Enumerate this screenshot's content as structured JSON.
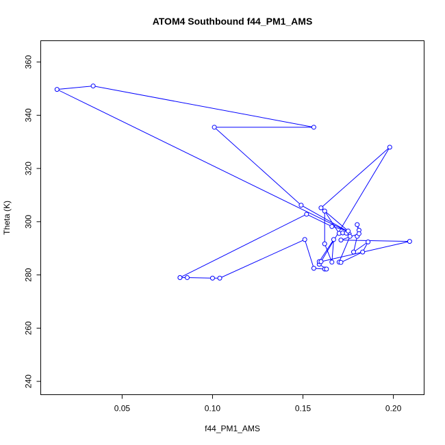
{
  "chart_data": {
    "type": "line",
    "title": "ATOM4 Southbound f44_PM1_AMS",
    "xlabel": "f44_PM1_AMS",
    "ylabel": "Theta (K)",
    "xlim": [
      0.005,
      0.217
    ],
    "ylim": [
      235,
      368
    ],
    "xticks": [
      {
        "value": 0.05,
        "label": "0.05"
      },
      {
        "value": 0.1,
        "label": "0.10"
      },
      {
        "value": 0.15,
        "label": "0.15"
      },
      {
        "value": 0.2,
        "label": "0.20"
      }
    ],
    "yticks": [
      {
        "value": 240,
        "label": "240"
      },
      {
        "value": 260,
        "label": "260"
      },
      {
        "value": 280,
        "label": "280"
      },
      {
        "value": 300,
        "label": "300"
      },
      {
        "value": 320,
        "label": "320"
      },
      {
        "value": 340,
        "label": "340"
      },
      {
        "value": 360,
        "label": "360"
      }
    ],
    "series_color": "#0000ff",
    "marker": "open-circle",
    "points": [
      {
        "x": 0.082,
        "y": 279.0
      },
      {
        "x": 0.086,
        "y": 279.0
      },
      {
        "x": 0.1,
        "y": 278.8
      },
      {
        "x": 0.104,
        "y": 278.8
      },
      {
        "x": 0.151,
        "y": 293.3
      },
      {
        "x": 0.156,
        "y": 282.5
      },
      {
        "x": 0.162,
        "y": 282.2
      },
      {
        "x": 0.163,
        "y": 282.2
      },
      {
        "x": 0.159,
        "y": 284.0
      },
      {
        "x": 0.159,
        "y": 285.0
      },
      {
        "x": 0.167,
        "y": 293.3
      },
      {
        "x": 0.166,
        "y": 284.8
      },
      {
        "x": 0.162,
        "y": 291.7
      },
      {
        "x": 0.162,
        "y": 304.0
      },
      {
        "x": 0.17,
        "y": 295.6
      },
      {
        "x": 0.172,
        "y": 295.8
      },
      {
        "x": 0.174,
        "y": 295.7
      },
      {
        "x": 0.176,
        "y": 294.5
      },
      {
        "x": 0.17,
        "y": 284.8
      },
      {
        "x": 0.171,
        "y": 284.7
      },
      {
        "x": 0.183,
        "y": 288.6
      },
      {
        "x": 0.186,
        "y": 292.4
      },
      {
        "x": 0.178,
        "y": 288.6
      },
      {
        "x": 0.18,
        "y": 294.5
      },
      {
        "x": 0.181,
        "y": 296.8
      },
      {
        "x": 0.18,
        "y": 298.9
      },
      {
        "x": 0.181,
        "y": 295.5
      },
      {
        "x": 0.171,
        "y": 293.1
      },
      {
        "x": 0.209,
        "y": 292.6
      },
      {
        "x": 0.16,
        "y": 285.0
      },
      {
        "x": 0.198,
        "y": 328.0
      },
      {
        "x": 0.16,
        "y": 305.2
      },
      {
        "x": 0.175,
        "y": 296.5
      },
      {
        "x": 0.166,
        "y": 298.2
      },
      {
        "x": 0.152,
        "y": 302.8
      },
      {
        "x": 0.082,
        "y": 279.0
      }
    ],
    "segments_upper": [
      {
        "x": 0.177,
        "y": 295.5
      },
      {
        "x": 0.149,
        "y": 306.2
      },
      {
        "x": 0.101,
        "y": 335.5
      },
      {
        "x": 0.156,
        "y": 335.5
      },
      {
        "x": 0.034,
        "y": 351.0
      },
      {
        "x": 0.014,
        "y": 349.7
      },
      {
        "x": 0.177,
        "y": 295.5
      }
    ]
  }
}
